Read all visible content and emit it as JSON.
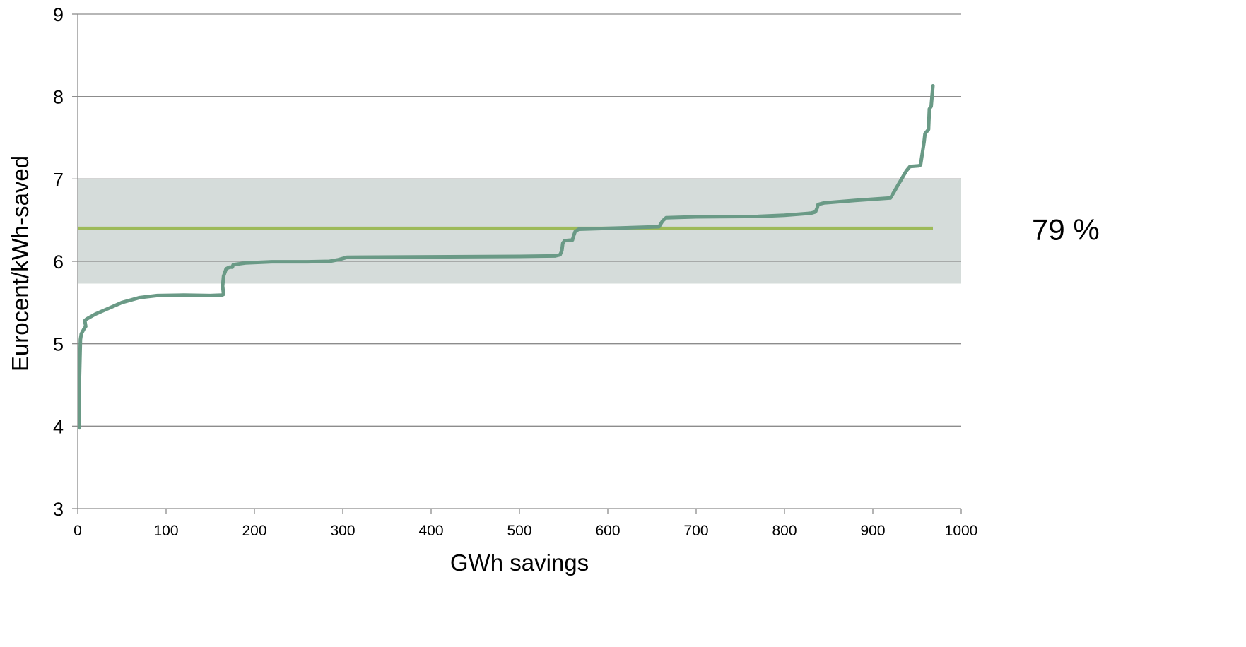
{
  "chart_data": {
    "type": "line",
    "title": "",
    "xlabel": "GWh savings",
    "ylabel": "Eurocent/kWh-saved",
    "xlim": [
      0,
      1000
    ],
    "ylim": [
      3,
      9
    ],
    "x_ticks": [
      "0",
      "100",
      "200",
      "300",
      "400",
      "500",
      "600",
      "700",
      "800",
      "900",
      "1000"
    ],
    "y_ticks": [
      "3",
      "4",
      "5",
      "6",
      "7",
      "8",
      "9"
    ],
    "grid": "horizontal",
    "band": {
      "y_from": 5.73,
      "y_to": 7.0,
      "label": "79 %",
      "color": "#d5dcda"
    },
    "reference_line": {
      "y": 6.4,
      "x_from": 0,
      "x_to": 968,
      "color": "#9dba59"
    },
    "series": [
      {
        "color": "#6a9a86",
        "points": [
          [
            2,
            3.98
          ],
          [
            2,
            4.6
          ],
          [
            3,
            5.05
          ],
          [
            4,
            5.12
          ],
          [
            7,
            5.18
          ],
          [
            9,
            5.21
          ],
          [
            8,
            5.28
          ],
          [
            10,
            5.3
          ],
          [
            20,
            5.36
          ],
          [
            35,
            5.43
          ],
          [
            50,
            5.5
          ],
          [
            70,
            5.56
          ],
          [
            90,
            5.585
          ],
          [
            120,
            5.59
          ],
          [
            150,
            5.585
          ],
          [
            163,
            5.59
          ],
          [
            165,
            5.6
          ],
          [
            164,
            5.7
          ],
          [
            165,
            5.82
          ],
          [
            168,
            5.91
          ],
          [
            172,
            5.93
          ],
          [
            175,
            5.93
          ],
          [
            176,
            5.96
          ],
          [
            190,
            5.98
          ],
          [
            220,
            5.995
          ],
          [
            260,
            5.995
          ],
          [
            285,
            6.0
          ],
          [
            295,
            6.02
          ],
          [
            305,
            6.05
          ],
          [
            400,
            6.055
          ],
          [
            500,
            6.06
          ],
          [
            540,
            6.065
          ],
          [
            546,
            6.08
          ],
          [
            548,
            6.13
          ],
          [
            549,
            6.22
          ],
          [
            551,
            6.25
          ],
          [
            560,
            6.26
          ],
          [
            561,
            6.3
          ],
          [
            563,
            6.36
          ],
          [
            567,
            6.39
          ],
          [
            600,
            6.4
          ],
          [
            658,
            6.42
          ],
          [
            662,
            6.49
          ],
          [
            666,
            6.53
          ],
          [
            700,
            6.54
          ],
          [
            770,
            6.545
          ],
          [
            800,
            6.56
          ],
          [
            830,
            6.585
          ],
          [
            835,
            6.6
          ],
          [
            837,
            6.65
          ],
          [
            838,
            6.69
          ],
          [
            845,
            6.71
          ],
          [
            880,
            6.74
          ],
          [
            920,
            6.77
          ],
          [
            938,
            7.1
          ],
          [
            942,
            7.15
          ],
          [
            952,
            7.16
          ],
          [
            954,
            7.17
          ],
          [
            958,
            7.45
          ],
          [
            959,
            7.55
          ],
          [
            963,
            7.6
          ],
          [
            964,
            7.85
          ],
          [
            966,
            7.88
          ],
          [
            968,
            8.13
          ]
        ]
      }
    ]
  }
}
